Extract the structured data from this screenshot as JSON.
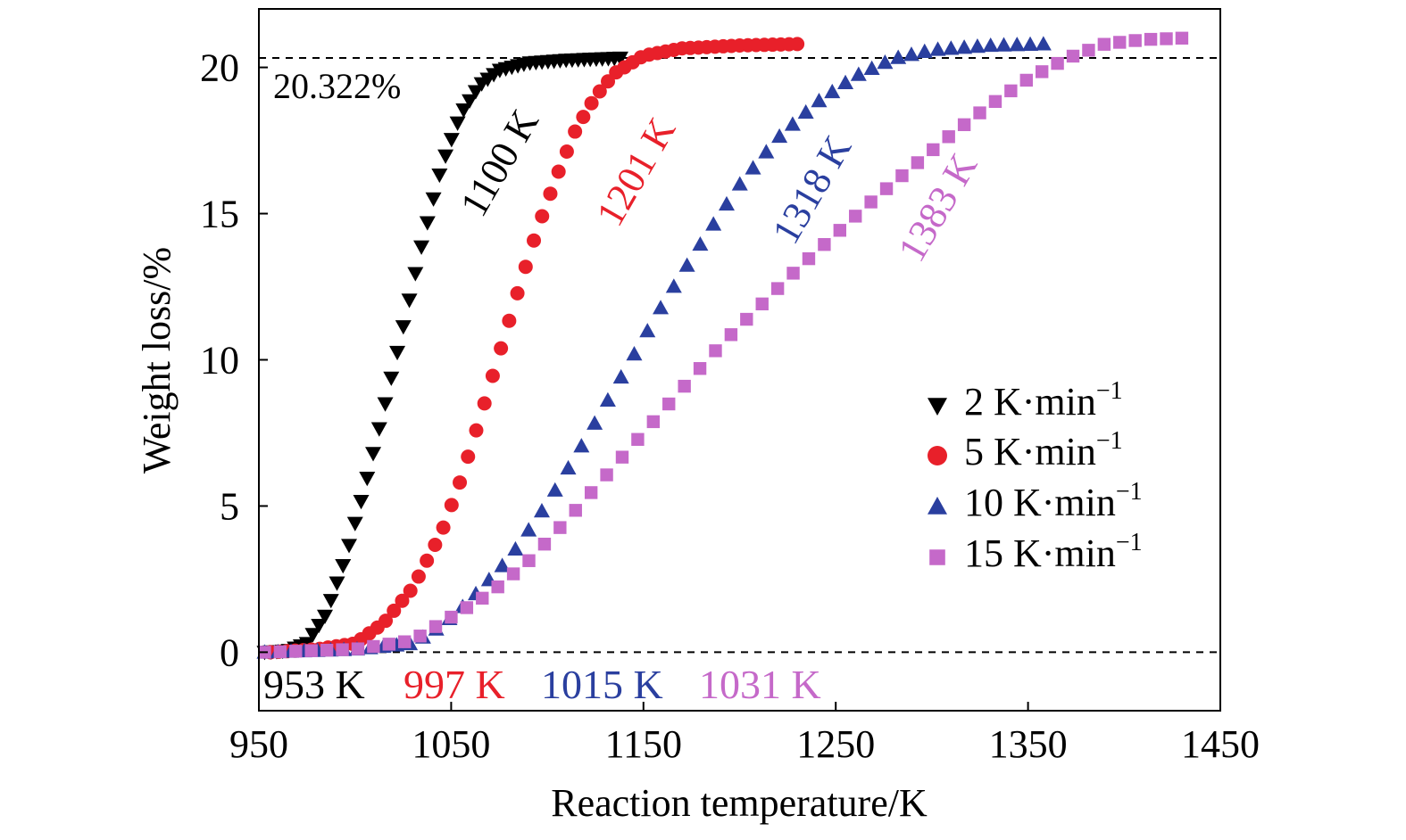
{
  "chart_data": {
    "type": "scatter",
    "xlabel": "Reaction temperature/K",
    "ylabel": "Weight loss/%",
    "xlim": [
      950,
      1450
    ],
    "ylim": [
      -2,
      22
    ],
    "xticks": [
      950,
      1050,
      1150,
      1250,
      1350,
      1450
    ],
    "yticks": [
      0,
      5,
      10,
      15,
      20
    ],
    "grid": false,
    "legend_position": "center-right",
    "reference_lines": [
      {
        "y": 20.322,
        "label": "20.322%"
      },
      {
        "y": 0,
        "label": ""
      }
    ],
    "series": [
      {
        "name": "2 K·min",
        "name_superscript": "−1",
        "marker": "triangle-down",
        "color": "#000000",
        "x_range": [
          953,
          1138
        ],
        "points": 60,
        "onset_label": "953 K",
        "end_label": "1100 K",
        "curve": [
          [
            953,
            0.0
          ],
          [
            965,
            0.05
          ],
          [
            975,
            0.3
          ],
          [
            985,
            1.3
          ],
          [
            995,
            3.2
          ],
          [
            1005,
            5.6
          ],
          [
            1015,
            8.3
          ],
          [
            1025,
            11.1
          ],
          [
            1035,
            14.0
          ],
          [
            1045,
            16.6
          ],
          [
            1055,
            18.4
          ],
          [
            1065,
            19.4
          ],
          [
            1075,
            19.9
          ],
          [
            1090,
            20.15
          ],
          [
            1110,
            20.25
          ],
          [
            1138,
            20.32
          ]
        ]
      },
      {
        "name": "5 K·min",
        "name_superscript": "−1",
        "marker": "circle",
        "color": "#e8202a",
        "x_range": [
          956,
          1230
        ],
        "points": 65,
        "onset_label": "997 K",
        "end_label": "1201 K",
        "curve": [
          [
            956,
            0.0
          ],
          [
            980,
            0.1
          ],
          [
            1000,
            0.3
          ],
          [
            1015,
            1.0
          ],
          [
            1030,
            2.2
          ],
          [
            1045,
            4.1
          ],
          [
            1055,
            5.9
          ],
          [
            1065,
            8.0
          ],
          [
            1075,
            10.2
          ],
          [
            1085,
            12.4
          ],
          [
            1095,
            14.5
          ],
          [
            1105,
            16.3
          ],
          [
            1115,
            17.9
          ],
          [
            1125,
            19.0
          ],
          [
            1135,
            19.8
          ],
          [
            1150,
            20.4
          ],
          [
            1170,
            20.65
          ],
          [
            1200,
            20.75
          ],
          [
            1230,
            20.8
          ]
        ]
      },
      {
        "name": "10 K·min",
        "name_superscript": "−1",
        "marker": "triangle-up",
        "color": "#2a3f9f",
        "x_range": [
          953,
          1358
        ],
        "points": 60,
        "onset_label": "1015 K",
        "end_label": "1318 K",
        "curve": [
          [
            953,
            0.0
          ],
          [
            1000,
            0.1
          ],
          [
            1030,
            0.3
          ],
          [
            1045,
            0.9
          ],
          [
            1060,
            1.8
          ],
          [
            1080,
            3.2
          ],
          [
            1100,
            5.1
          ],
          [
            1120,
            7.3
          ],
          [
            1140,
            9.6
          ],
          [
            1160,
            11.9
          ],
          [
            1180,
            14.0
          ],
          [
            1200,
            16.0
          ],
          [
            1220,
            17.6
          ],
          [
            1240,
            18.8
          ],
          [
            1260,
            19.7
          ],
          [
            1280,
            20.3
          ],
          [
            1300,
            20.6
          ],
          [
            1330,
            20.75
          ],
          [
            1358,
            20.8
          ]
        ]
      },
      {
        "name": "15 K·min",
        "name_superscript": "−1",
        "marker": "square",
        "color": "#c569c9",
        "x_range": [
          953,
          1430
        ],
        "points": 60,
        "onset_label": "1031 K",
        "end_label": "1383 K",
        "curve": [
          [
            953,
            0.0
          ],
          [
            1000,
            0.1
          ],
          [
            1030,
            0.4
          ],
          [
            1050,
            1.2
          ],
          [
            1070,
            2.0
          ],
          [
            1090,
            3.1
          ],
          [
            1110,
            4.5
          ],
          [
            1130,
            6.0
          ],
          [
            1150,
            7.5
          ],
          [
            1170,
            9.0
          ],
          [
            1190,
            10.5
          ],
          [
            1210,
            11.8
          ],
          [
            1230,
            13.1
          ],
          [
            1250,
            14.3
          ],
          [
            1270,
            15.5
          ],
          [
            1290,
            16.6
          ],
          [
            1310,
            17.7
          ],
          [
            1330,
            18.7
          ],
          [
            1350,
            19.6
          ],
          [
            1370,
            20.3
          ],
          [
            1390,
            20.8
          ],
          [
            1410,
            20.95
          ],
          [
            1430,
            21.0
          ]
        ]
      }
    ]
  }
}
